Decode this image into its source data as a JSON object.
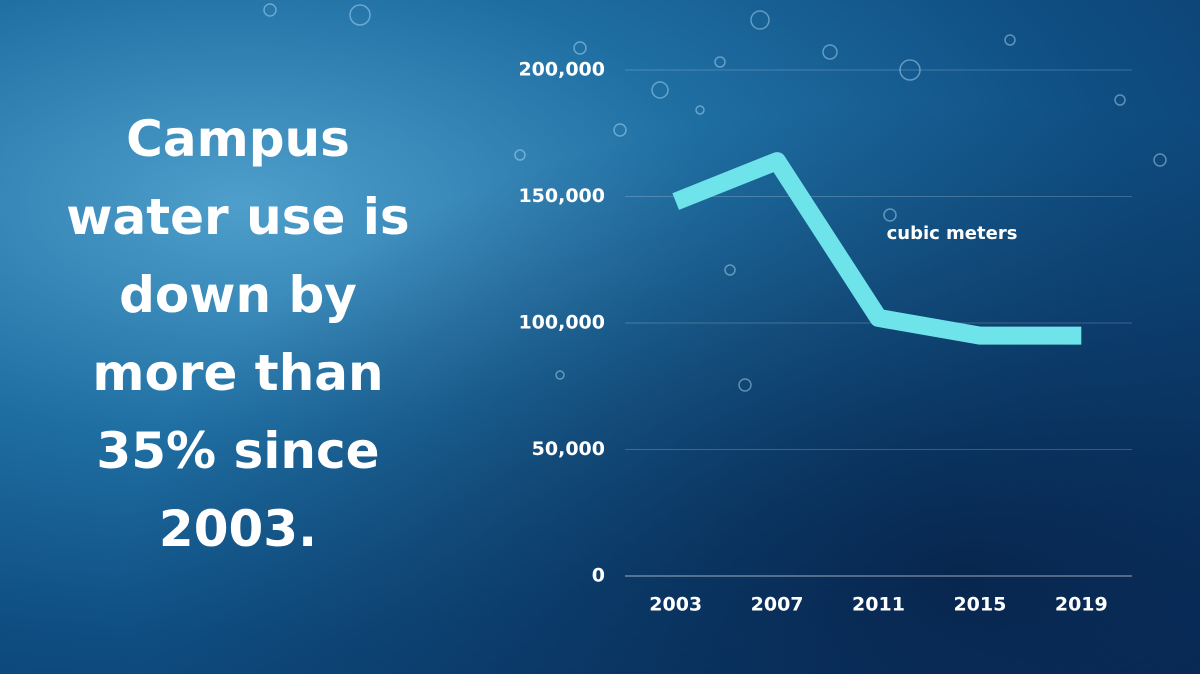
{
  "chart_data": {
    "type": "line",
    "title": "Campus water use is down by more than 35% since 2003.",
    "annotation": "cubic meters",
    "categories": [
      "2003",
      "2007",
      "2011",
      "2015",
      "2019"
    ],
    "values": [
      148000,
      164000,
      102000,
      95000,
      95000
    ],
    "color": "#6fe3ea",
    "ylim": [
      0,
      200000
    ],
    "yticks": [
      0,
      {
        "value": 50000,
        "label": "50,000"
      },
      {
        "value": 100000,
        "label": "100,000"
      },
      {
        "value": 150000,
        "label": "150,000"
      },
      {
        "value": 200000,
        "label": "200,000"
      }
    ],
    "grid": true
  }
}
